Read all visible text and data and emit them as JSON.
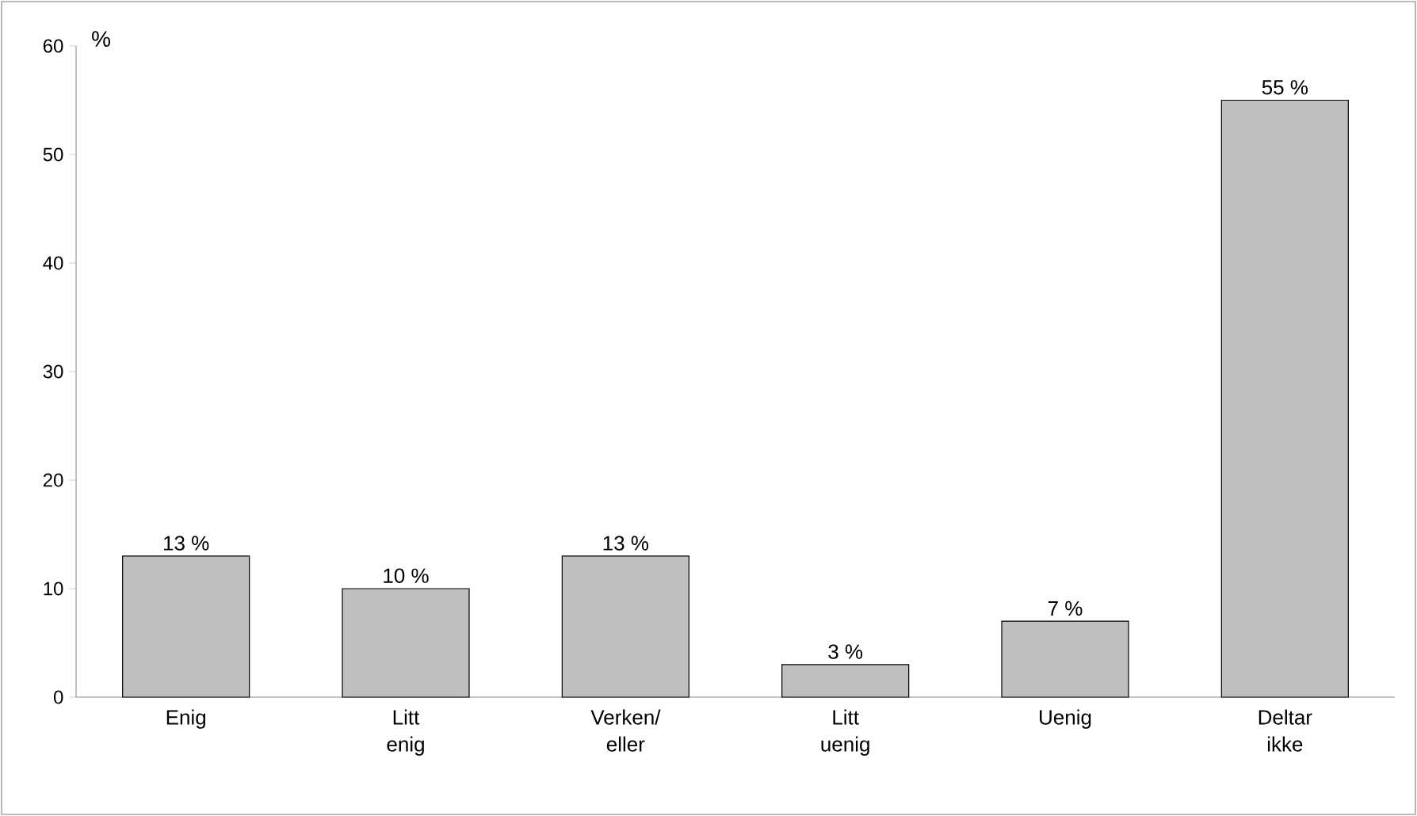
{
  "chart_data": {
    "type": "bar",
    "ylabel": "%",
    "categories": [
      "Enig",
      "Litt enig",
      "Verken/ eller",
      "Litt uenig",
      "Uenig",
      "Deltar ikke"
    ],
    "values": [
      13,
      10,
      13,
      3,
      7,
      55
    ],
    "value_labels": [
      "13 %",
      "10 %",
      "13 %",
      "3 %",
      "7 %",
      "55 %"
    ],
    "color": "#bfbfbf",
    "ylim": [
      0,
      60
    ],
    "yticks": [
      0,
      10,
      20,
      30,
      40,
      50,
      60
    ]
  }
}
